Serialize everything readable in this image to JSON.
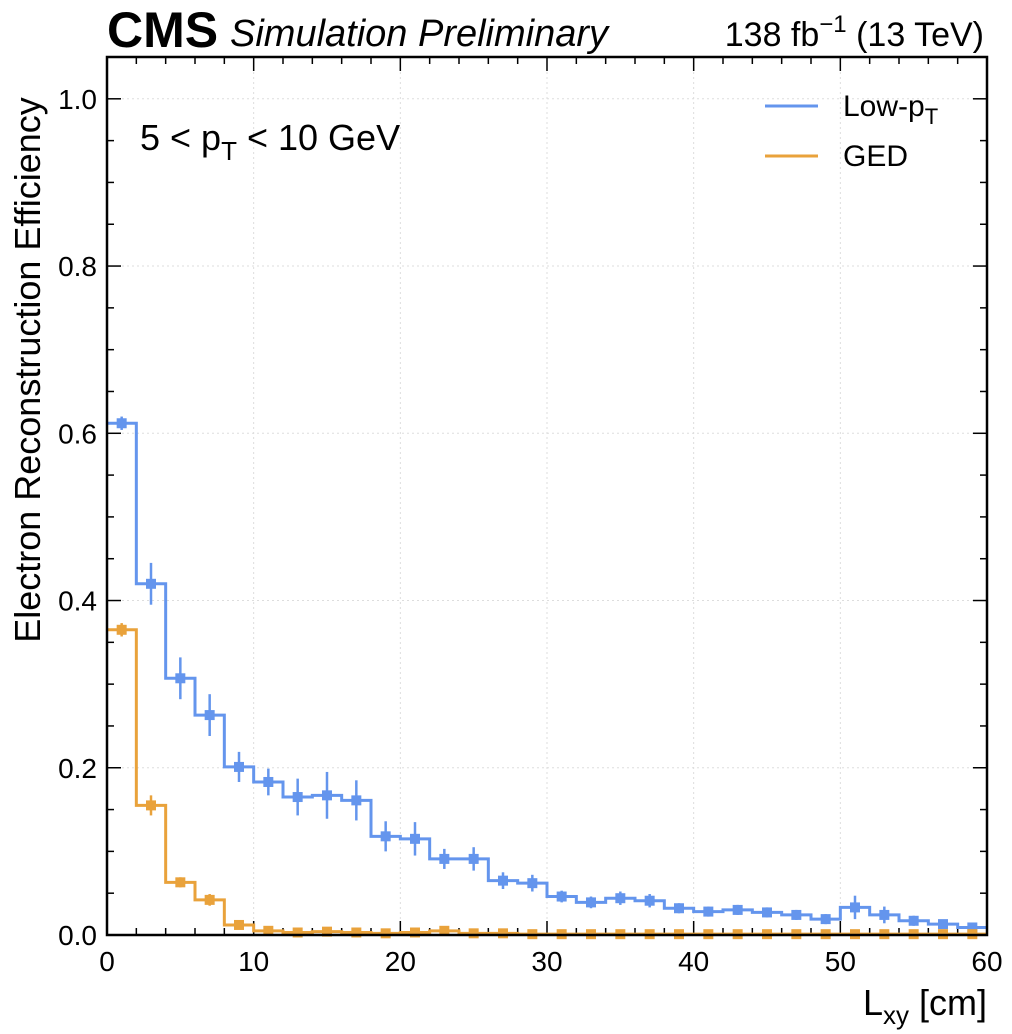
{
  "header": {
    "experiment": "CMS",
    "status": "Simulation Preliminary",
    "lumi": "138 fb",
    "lumi_exp": "−1",
    "energy": "(13 TeV)"
  },
  "annotation": {
    "pre": "5 < p",
    "sub": "T",
    "post": " < 10 GeV"
  },
  "chart_data": {
    "type": "line",
    "title": "",
    "xlabel": "L",
    "xlabel_sub": "xy",
    "xlabel_unit": " [cm]",
    "ylabel": "Electron Reconstruction Efficiency",
    "xlim": [
      0,
      60
    ],
    "ylim": [
      0,
      1.05
    ],
    "xticks": [
      0,
      10,
      20,
      30,
      40,
      50,
      60
    ],
    "xtick_labels": [
      "0",
      "10",
      "20",
      "30",
      "40",
      "50",
      "60"
    ],
    "yticks": [
      0,
      0.2,
      0.4,
      0.6,
      0.8,
      1.0
    ],
    "ytick_labels": [
      "0.0",
      "0.2",
      "0.4",
      "0.6",
      "0.8",
      "1.0"
    ],
    "grid": true,
    "legend": "top-right",
    "bin_edges": [
      0,
      2,
      4,
      6,
      8,
      10,
      12,
      14,
      16,
      18,
      20,
      22,
      24,
      26,
      28,
      30,
      32,
      34,
      36,
      38,
      40,
      42,
      44,
      46,
      48,
      50,
      52,
      54,
      56,
      58,
      60
    ],
    "series": [
      {
        "name": "Low-p",
        "name_sub": "T",
        "color": "#6495ed",
        "values": [
          0.612,
          0.42,
          0.307,
          0.263,
          0.201,
          0.183,
          0.165,
          0.167,
          0.161,
          0.118,
          0.115,
          0.091,
          0.091,
          0.065,
          0.062,
          0.046,
          0.039,
          0.044,
          0.041,
          0.032,
          0.028,
          0.03,
          0.027,
          0.024,
          0.019,
          0.033,
          0.024,
          0.017,
          0.013,
          0.009
        ],
        "errors": [
          0.008,
          0.025,
          0.025,
          0.025,
          0.018,
          0.016,
          0.022,
          0.028,
          0.024,
          0.018,
          0.02,
          0.012,
          0.014,
          0.01,
          0.01,
          0.007,
          0.007,
          0.008,
          0.008,
          0.006,
          0.006,
          0.006,
          0.006,
          0.006,
          0.006,
          0.014,
          0.01,
          0.006,
          0.005,
          0.004
        ]
      },
      {
        "name": "GED",
        "color": "#e9a23b",
        "values": [
          0.365,
          0.155,
          0.063,
          0.042,
          0.012,
          0.005,
          0.003,
          0.004,
          0.003,
          0.002,
          0.003,
          0.005,
          0.002,
          0.002,
          0.001,
          0.001,
          0.001,
          0.001,
          0.001,
          0.001,
          0.001,
          0.001,
          0.001,
          0.001,
          0.001,
          0.001,
          0.001,
          0.001,
          0.001,
          0.001
        ],
        "errors": [
          0.008,
          0.012,
          0.006,
          0.007,
          0.004,
          0.002,
          0.001,
          0.002,
          0.001,
          0.001,
          0.001,
          0.002,
          0.001,
          0.001,
          0.001,
          0.001,
          0.001,
          0.001,
          0.001,
          0.001,
          0.001,
          0.001,
          0.001,
          0.001,
          0.001,
          0.001,
          0.001,
          0.001,
          0.001,
          0.001
        ]
      }
    ]
  }
}
